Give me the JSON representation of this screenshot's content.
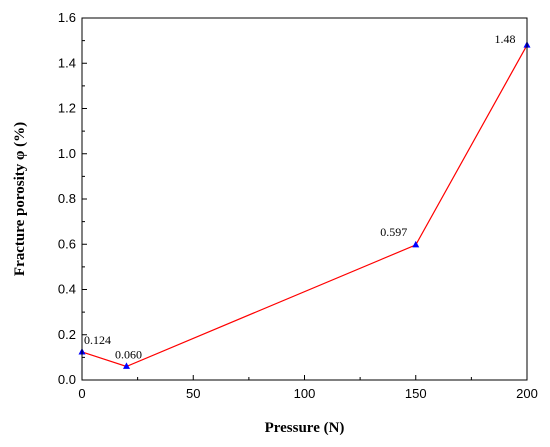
{
  "chart_data": {
    "type": "line",
    "title": "",
    "xlabel": "Pressure (N)",
    "ylabel": "Fracture porosity φ (%)",
    "xlim": [
      0,
      200
    ],
    "ylim": [
      0,
      1.6
    ],
    "xticks": [
      0,
      50,
      100,
      150,
      200
    ],
    "yticks": [
      0.0,
      0.2,
      0.4,
      0.6,
      0.8,
      1.0,
      1.2,
      1.4,
      1.6
    ],
    "ytick_labels": [
      "0.0",
      "0.2",
      "0.4",
      "0.6",
      "0.8",
      "1.0",
      "1.2",
      "1.4",
      "1.6"
    ],
    "grid": false,
    "legend": "none",
    "series": [
      {
        "x": [
          0,
          20,
          150,
          200
        ],
        "y": [
          0.124,
          0.06,
          0.597,
          1.48
        ],
        "labels": [
          "0.124",
          "0.060",
          "0.597",
          "1.48"
        ],
        "line_color": "#ff0000",
        "marker_color": "#0000ff",
        "marker": "triangle"
      }
    ]
  }
}
